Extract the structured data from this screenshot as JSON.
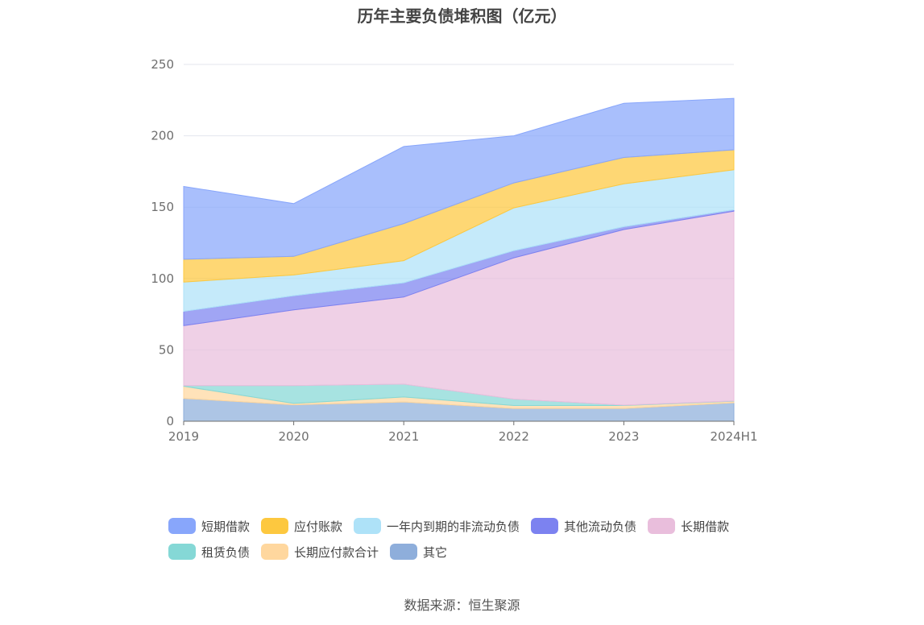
{
  "title": "历年主要负债堆积图（亿元）",
  "source": "数据来源：恒生聚源",
  "chart_data": {
    "type": "area",
    "stacked": true,
    "title": "历年主要负债堆积图（亿元）",
    "categories": [
      "2019",
      "2020",
      "2021",
      "2022",
      "2023",
      "2024H1"
    ],
    "ylim": [
      0,
      250
    ],
    "yticks": [
      0,
      50,
      100,
      150,
      200,
      250
    ],
    "grid": true,
    "legend_position": "bottom",
    "series": [
      {
        "name": "其它",
        "color": "#8eaedb",
        "values": [
          16,
          11.5,
          13.5,
          9,
          9,
          13
        ]
      },
      {
        "name": "长期应付款合计",
        "color": "#ffd79e",
        "values": [
          8.5,
          1,
          3.5,
          2,
          2,
          1
        ]
      },
      {
        "name": "租赁负债",
        "color": "#85d8d6",
        "values": [
          0.5,
          12.5,
          9,
          4.5,
          0.3,
          0.2
        ]
      },
      {
        "name": "长期借款",
        "color": "#e9bedc",
        "values": [
          42,
          53,
          61,
          99,
          123,
          133
        ]
      },
      {
        "name": "其他流动负债",
        "color": "#7c82f0",
        "values": [
          10,
          10,
          10,
          5,
          2,
          1
        ]
      },
      {
        "name": "一年内到期的非流动负债",
        "color": "#aee2f8",
        "values": [
          20.5,
          14.5,
          15.5,
          30,
          30,
          28
        ]
      },
      {
        "name": "应付账款",
        "color": "#fdc83f",
        "values": [
          16,
          13,
          26,
          17.5,
          18.5,
          14
        ]
      },
      {
        "name": "短期借款",
        "color": "#88a6fb",
        "values": [
          51,
          37,
          54,
          33,
          38,
          36
        ]
      }
    ]
  },
  "legend_rows": [
    [
      {
        "label": "短期借款",
        "color": "#88a6fb"
      },
      {
        "label": "应付账款",
        "color": "#fdc83f"
      },
      {
        "label": "一年内到期的非流动负债",
        "color": "#aee2f8"
      },
      {
        "label": "其他流动负债",
        "color": "#7c82f0"
      },
      {
        "label": "长期借款",
        "color": "#e9bedc"
      }
    ],
    [
      {
        "label": "租赁负债",
        "color": "#85d8d6"
      },
      {
        "label": "长期应付款合计",
        "color": "#ffd79e"
      },
      {
        "label": "其它",
        "color": "#8eaedb"
      }
    ]
  ]
}
